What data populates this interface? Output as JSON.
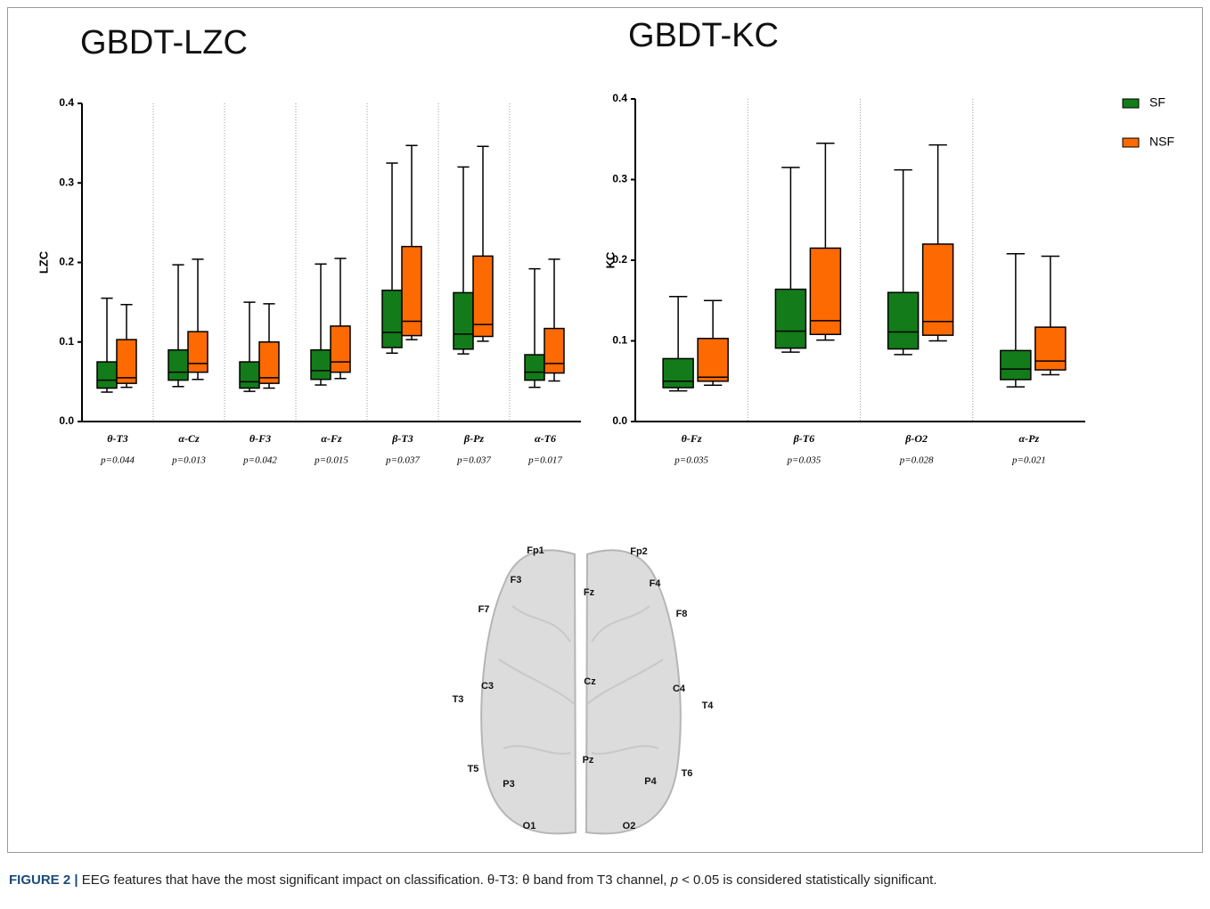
{
  "chart_data": [
    {
      "type": "box",
      "title": "GBDT-LZC",
      "y_label": "LZC",
      "categories": [
        "θ-T3",
        "α-Cz",
        "θ-F3",
        "α-Fz",
        "β-T3",
        "β-Pz",
        "α-T6"
      ],
      "p_values": [
        "p=0.044",
        "p=0.013",
        "p=0.042",
        "p=0.015",
        "p=0.037",
        "p=0.037",
        "p=0.017"
      ],
      "series": [
        {
          "color": "#137b1a",
          "min": [
            0.037,
            0.044,
            0.038,
            0.046,
            0.086,
            0.085,
            0.043
          ],
          "q1": [
            0.042,
            0.052,
            0.042,
            0.053,
            0.093,
            0.091,
            0.052
          ],
          "median": [
            0.052,
            0.062,
            0.05,
            0.064,
            0.112,
            0.11,
            0.062
          ],
          "q3": [
            0.075,
            0.09,
            0.075,
            0.09,
            0.165,
            0.162,
            0.084
          ],
          "max": [
            0.155,
            0.197,
            0.15,
            0.198,
            0.325,
            0.32,
            0.192
          ]
        },
        {
          "color": "#fd6a02",
          "min": [
            0.043,
            0.053,
            0.042,
            0.054,
            0.103,
            0.101,
            0.051
          ],
          "q1": [
            0.048,
            0.062,
            0.048,
            0.062,
            0.108,
            0.107,
            0.061
          ],
          "median": [
            0.055,
            0.073,
            0.055,
            0.075,
            0.126,
            0.122,
            0.073
          ],
          "q3": [
            0.103,
            0.113,
            0.1,
            0.12,
            0.22,
            0.208,
            0.117
          ],
          "max": [
            0.147,
            0.204,
            0.148,
            0.205,
            0.347,
            0.346,
            0.204
          ]
        }
      ],
      "ylim": [
        0,
        0.4
      ],
      "yticks": [
        {
          "value": 0,
          "label": "0.0"
        },
        0.1,
        0.2,
        0.3,
        0.4
      ]
    },
    {
      "type": "box",
      "title": "GBDT-KC",
      "y_label": "KC",
      "categories": [
        "θ-Fz",
        "β-T6",
        "β-O2",
        "α-Pz"
      ],
      "p_values": [
        "p=0.035",
        "p=0.035",
        "p=0.028",
        "p=0.021"
      ],
      "series": [
        {
          "name": "SF",
          "color": "#137b1a",
          "min": [
            0.038,
            0.086,
            0.083,
            0.043
          ],
          "q1": [
            0.042,
            0.091,
            0.09,
            0.052
          ],
          "median": [
            0.05,
            0.112,
            0.111,
            0.065
          ],
          "q3": [
            0.078,
            0.164,
            0.16,
            0.088
          ],
          "max": [
            0.155,
            0.315,
            0.312,
            0.208
          ]
        },
        {
          "name": "NSF",
          "color": "#fd6a02",
          "min": [
            0.045,
            0.101,
            0.1,
            0.058
          ],
          "q1": [
            0.05,
            0.108,
            0.107,
            0.064
          ],
          "median": [
            0.055,
            0.125,
            0.124,
            0.075
          ],
          "q3": [
            0.103,
            0.215,
            0.22,
            0.117
          ],
          "max": [
            0.15,
            0.345,
            0.343,
            0.205
          ]
        }
      ],
      "ylim": [
        0,
        0.4
      ],
      "yticks": [
        {
          "value": 0,
          "label": "0.0"
        },
        0.1,
        0.2,
        0.3,
        0.4
      ],
      "legend": "top-right"
    }
  ],
  "brain": {
    "electrodes": [
      "Fp1",
      "Fp2",
      "F3",
      "F4",
      "Fz",
      "F7",
      "F8",
      "C3",
      "Cz",
      "C4",
      "T3",
      "T4",
      "Pz",
      "T5",
      "T6",
      "P3",
      "P4",
      "O1",
      "O2"
    ]
  },
  "caption": {
    "label": "FIGURE 2 |",
    "text": " EEG features that have the most significant impact on classification. θ-T3: θ band from T3 channel, ",
    "p": "p",
    "rest": " < 0.05 is considered statistically significant."
  }
}
